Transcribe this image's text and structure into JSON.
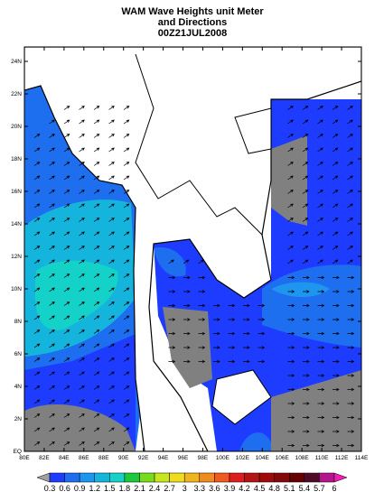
{
  "header": {
    "title": [
      "WAM Wave Heights unit Meter",
      "and Directions",
      "00Z21JUL2008"
    ]
  },
  "map": {
    "lat_labels": [
      "EQ",
      "2N",
      "4N",
      "6N",
      "8N",
      "10N",
      "12N",
      "14N",
      "16N",
      "18N",
      "20N",
      "22N",
      "24N"
    ],
    "lon_labels": [
      "80E",
      "82E",
      "84E",
      "86E",
      "88E",
      "90E",
      "92E",
      "94E",
      "96E",
      "98E",
      "100E",
      "102E",
      "104E",
      "106E",
      "108E",
      "110E",
      "112E",
      "114E"
    ]
  },
  "colorbar": {
    "labels": [
      "0.3",
      "0.6",
      "0.9",
      "1.2",
      "1.5",
      "1.8",
      "2.1",
      "2.4",
      "2.7",
      "3",
      "3.3",
      "3.6",
      "3.9",
      "4.2",
      "4.5",
      "4.8",
      "5.1",
      "5.4",
      "5.7",
      "6"
    ],
    "colors": [
      "#a0a0a0",
      "#1e3cff",
      "#1e6ef0",
      "#1e96f0",
      "#14b4dc",
      "#14d2c8",
      "#1ec83c",
      "#78dc1e",
      "#c8e61e",
      "#f0dc1e",
      "#f0b41e",
      "#f08c1e",
      "#f05a1e",
      "#dc1e1e",
      "#b41414",
      "#a00a0a",
      "#820a0a",
      "#640000",
      "#500a28",
      "#b4148c",
      "#f01eb4"
    ]
  }
}
